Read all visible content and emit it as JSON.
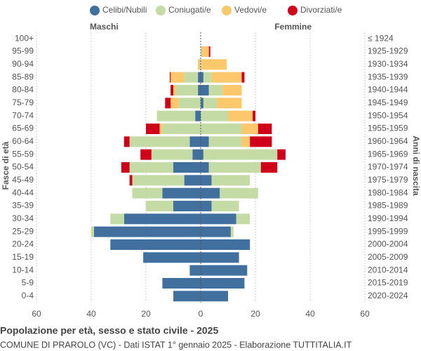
{
  "chart_data": {
    "type": "pyramid",
    "title": "Popolazione per età, sesso e stato civile - 2025",
    "subtitle": "COMUNE DI PRAROLO (VC) - Dati ISTAT 1° gennaio 2025 - Elaborazione TUTTITALIA.IT",
    "left_label": "Maschi",
    "right_label": "Femmine",
    "y_label": "Fasce di età",
    "y2_label": "Anni di nascita",
    "categories": [
      "100+",
      "95-99",
      "90-94",
      "85-89",
      "80-84",
      "75-79",
      "70-74",
      "65-69",
      "60-64",
      "55-59",
      "50-54",
      "45-49",
      "40-44",
      "35-39",
      "30-34",
      "25-29",
      "20-24",
      "15-19",
      "10-14",
      "5-9",
      "0-4"
    ],
    "birth_years": [
      "≤ 1924",
      "1925-1929",
      "1930-1934",
      "1935-1939",
      "1940-1944",
      "1945-1949",
      "1950-1954",
      "1955-1959",
      "1960-1964",
      "1965-1969",
      "1970-1974",
      "1975-1979",
      "1980-1984",
      "1985-1989",
      "1990-1994",
      "1995-1999",
      "2000-2004",
      "2005-2009",
      "2010-2014",
      "2015-2019",
      "2020-2024"
    ],
    "series": [
      {
        "name": "Celibi/Nubili",
        "color": "#41709f",
        "male": [
          0,
          0,
          0,
          1,
          1,
          0,
          2,
          0,
          4,
          3,
          10,
          6,
          14,
          10,
          28,
          39,
          33,
          21,
          4,
          14,
          10
        ],
        "female": [
          0,
          0,
          0,
          1,
          3,
          1,
          0,
          0,
          3,
          1,
          3,
          4,
          7,
          4,
          13,
          11,
          18,
          14,
          17,
          16,
          10
        ]
      },
      {
        "name": "Coniugati/e",
        "color": "#c5dba6",
        "male": [
          0,
          0,
          0,
          5,
          8,
          8,
          14,
          14,
          22,
          15,
          16,
          19,
          11,
          10,
          5,
          1,
          0,
          0,
          0,
          0,
          0
        ],
        "female": [
          0,
          0.5,
          0.5,
          3,
          5,
          5,
          10,
          15,
          12,
          27,
          19,
          14,
          14,
          10,
          5,
          1,
          0,
          0,
          0,
          0,
          0
        ]
      },
      {
        "name": "Vedovi/e",
        "color": "#fcc86b",
        "male": [
          0,
          0,
          1,
          5,
          1,
          3,
          0,
          1,
          0,
          0,
          0,
          0,
          0,
          0,
          0,
          0,
          0,
          0,
          0,
          0,
          0
        ],
        "female": [
          0,
          2.5,
          9,
          11,
          7,
          9,
          9,
          6,
          3,
          0,
          0,
          0,
          0,
          0,
          0,
          0,
          0,
          0,
          0,
          0,
          0
        ]
      },
      {
        "name": "Divorziati/e",
        "color": "#d0021b",
        "male": [
          0,
          0,
          0,
          0.3,
          1,
          2,
          0,
          5,
          2,
          4,
          3,
          1,
          0,
          0,
          0,
          0,
          0,
          0,
          0,
          0,
          0
        ],
        "female": [
          0,
          0.5,
          0,
          1,
          0,
          0,
          1,
          5,
          8,
          3,
          6,
          0,
          0,
          0,
          0,
          0,
          0,
          0,
          0,
          0,
          0
        ]
      }
    ],
    "xlim": [
      -60,
      60
    ],
    "xticks": [
      {
        "value": -60,
        "label": "60"
      },
      {
        "value": -40,
        "label": "40"
      },
      {
        "value": -20,
        "label": "20"
      },
      0,
      20,
      40,
      60
    ],
    "grid": true
  }
}
